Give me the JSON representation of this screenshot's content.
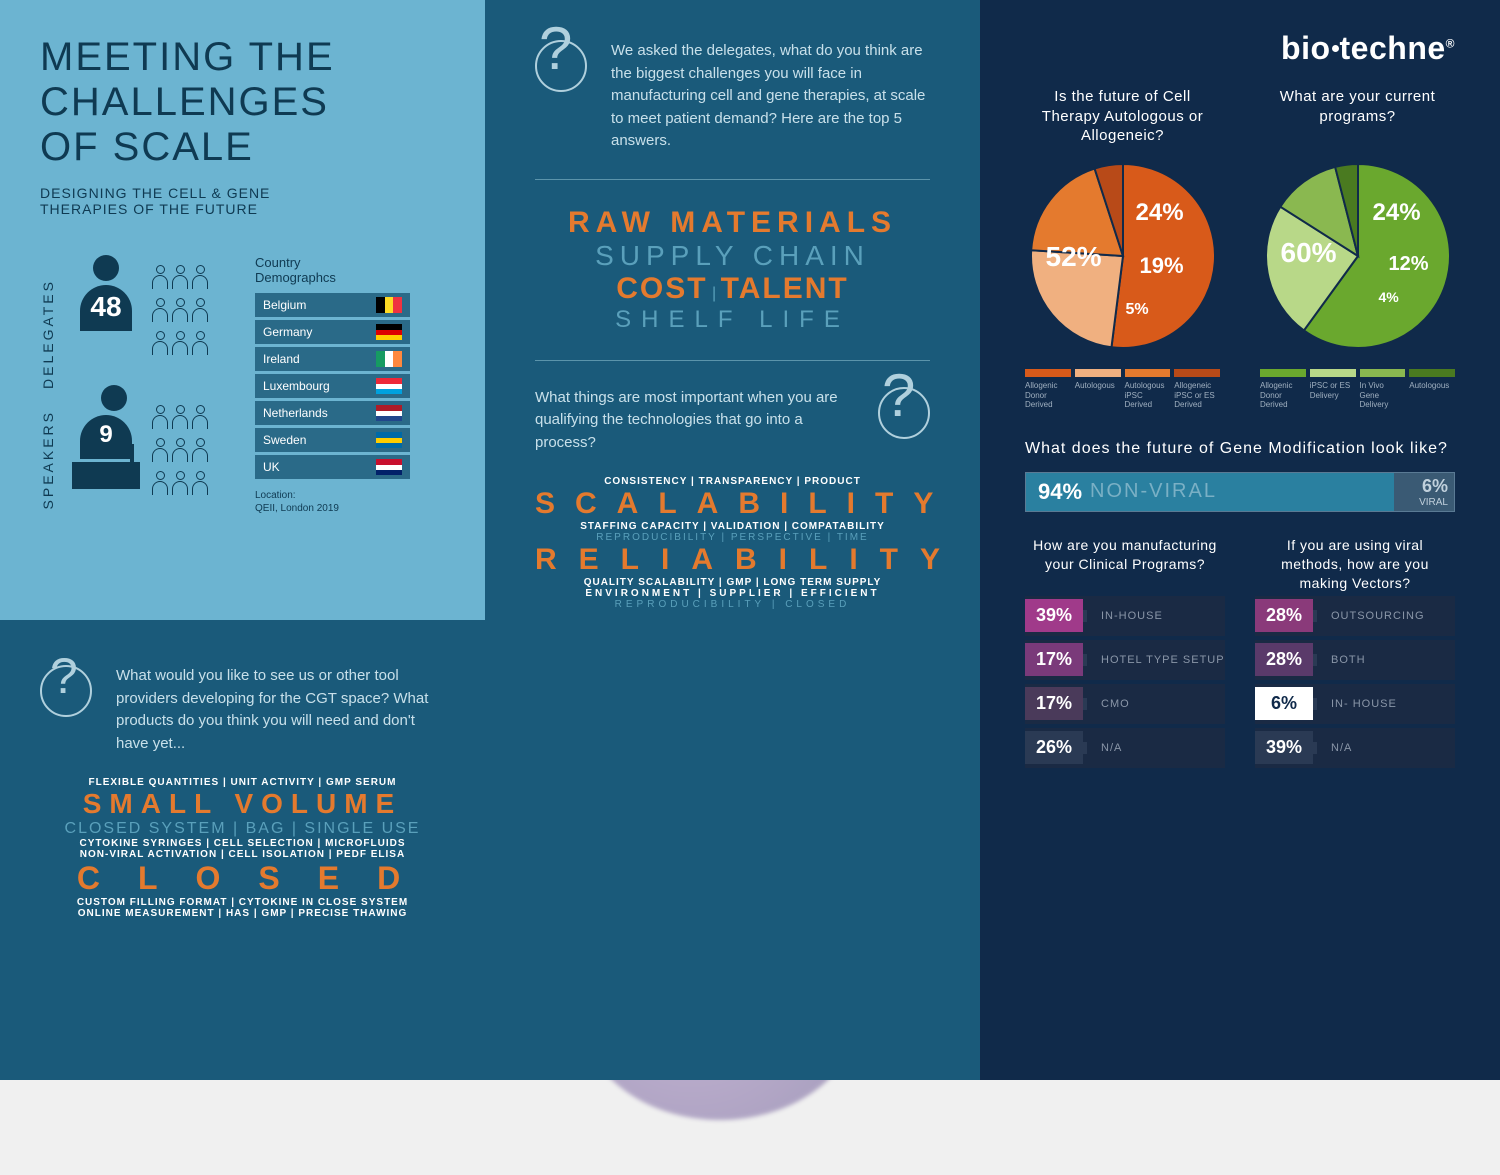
{
  "header": {
    "title_l1": "MEETING THE",
    "title_l2": "CHALLENGES",
    "title_l3": "OF SCALE",
    "subtitle": "DESIGNING THE CELL & GENE\nTHERAPIES OF THE FUTURE"
  },
  "stats": {
    "delegates_label": "DELEGATES",
    "delegates_count": "48",
    "speakers_label": "SPEAKERS",
    "speakers_count": "9"
  },
  "countries": {
    "title": "Country\nDemographcs",
    "rows": [
      {
        "name": "Belgium",
        "flag": [
          "#000000",
          "#fdda24",
          "#ef3340"
        ],
        "vertical": true
      },
      {
        "name": "Germany",
        "flag": [
          "#000000",
          "#dd0000",
          "#ffce00"
        ]
      },
      {
        "name": "Ireland",
        "flag": [
          "#169b62",
          "#ffffff",
          "#ff883e"
        ],
        "vertical": true
      },
      {
        "name": "Luxembourg",
        "flag": [
          "#ed2939",
          "#ffffff",
          "#00a1de"
        ]
      },
      {
        "name": "Netherlands",
        "flag": [
          "#ae1c28",
          "#ffffff",
          "#21468b"
        ]
      },
      {
        "name": "Sweden",
        "flag": [
          "#006aa7",
          "#fecc00",
          "#006aa7"
        ]
      },
      {
        "name": "UK",
        "flag": [
          "#c8102e",
          "#ffffff",
          "#012169"
        ]
      }
    ],
    "location": "Location:\nQEII, London 2019"
  },
  "panel_left_bot": {
    "question": "What would you like to see us or other tool providers developing for the CGT space? What products do  you think you will need and don't have yet...",
    "cloud": {
      "l1": "FLEXIBLE QUANTITIES | UNIT ACTIVITY | GMP SERUM",
      "l2": "SMALL VOLUME",
      "l3": "CLOSED SYSTEM | BAG | SINGLE USE",
      "l4": "CYTOKINE SYRINGES | CELL SELECTION | MICROFLUIDS",
      "l5": "NON-VIRAL ACTIVATION | CELL ISOLATION | PEDF ELISA",
      "l6": "CLOSED",
      "l7": "CUSTOM FILLING FORMAT | CYTOKINE IN CLOSE SYSTEM",
      "l8": "ONLINE MEASUREMENT | HAS | GMP | PRECISE THAWING"
    }
  },
  "panel_mid": {
    "q1": "We asked the delegates, what do you think are the biggest challenges you will face in manufacturing cell and gene therapies, at scale to meet patient demand? Here are the top 5 answers.",
    "cloud1": {
      "l1": "RAW MATERIALS",
      "l2": "SUPPLY CHAIN",
      "l3a": "COST",
      "l3b": "TALENT",
      "l4": "SHELF LIFE"
    },
    "q2": "What things are most important when you are qualifying the technologies that go into a process?",
    "cloud2": {
      "l1": "CONSISTENCY | TRANSPARENCY | PRODUCT",
      "l2": "SCALABILITY",
      "l3": "STAFFING CAPACITY | VALIDATION | COMPATABILITY",
      "l4": "REPRODUCIBILITY | PERSPECTIVE | TIME",
      "l5": "RELIABILITY",
      "l6": "QUALITY SCALABILITY | GMP | LONG TERM SUPPLY",
      "l7": "ENVIRONMENT | SUPPLIER | EFFICIENT",
      "l8": "REPRODUCIBILITY | CLOSED"
    }
  },
  "panel_right": {
    "logo": "biotechne",
    "pie1": {
      "question": "Is the future of Cell Therapy Autologous or Allogeneic?",
      "slices": [
        {
          "label": "52%",
          "value": 52,
          "color": "#d85a1a"
        },
        {
          "label": "24%",
          "value": 24,
          "color": "#f0b080"
        },
        {
          "label": "19%",
          "value": 19,
          "color": "#e47a2e"
        },
        {
          "label": "5%",
          "value": 5,
          "color": "#b84a18"
        }
      ],
      "legend": [
        "Allogenic Donor Derived",
        "Autologous",
        "Autologous iPSC Derived",
        "Allogeneic iPSC or ES Derived"
      ]
    },
    "pie2": {
      "question": "What are your current programs?",
      "slices": [
        {
          "label": "60%",
          "value": 60,
          "color": "#6aa82e"
        },
        {
          "label": "24%",
          "value": 24,
          "color": "#b8d888"
        },
        {
          "label": "12%",
          "value": 12,
          "color": "#8ab850"
        },
        {
          "label": "4%",
          "value": 4,
          "color": "#4a7a20"
        }
      ],
      "legend": [
        "Allogenic Donor Derived",
        "iPSC or ES Delivery",
        "In Vivo Gene Delivery",
        "Autologous"
      ]
    },
    "gene_mod": {
      "question": "What does the future of Gene Modification look like?",
      "main_pct": "94%",
      "main_label": "NON-VIRAL",
      "main_width": 86,
      "alt_pct": "6%",
      "alt_label": "VIRAL"
    },
    "table1": {
      "question": "How are you manufacturing your Clinical Programs?",
      "rows": [
        {
          "pct": "39%",
          "label": "IN-HOUSE",
          "color": "#a03a8a"
        },
        {
          "pct": "17%",
          "label": "HOTEL TYPE SETUP",
          "color": "#7a3a7a"
        },
        {
          "pct": "17%",
          "label": "CMO",
          "color": "#4a3a5a"
        },
        {
          "pct": "26%",
          "label": "N/A",
          "color": "#2a3a54"
        }
      ]
    },
    "table2": {
      "question": "If you are using viral methods, how are you making Vectors?",
      "rows": [
        {
          "pct": "28%",
          "label": "OUTSOURCING",
          "color": "#8a3a7a"
        },
        {
          "pct": "28%",
          "label": "BOTH",
          "color": "#5a3a6a"
        },
        {
          "pct": "6%",
          "label": "IN- HOUSE",
          "color": "#ffffff",
          "txt": "#102a4a"
        },
        {
          "pct": "39%",
          "label": "N/A",
          "color": "#2a3a54"
        }
      ]
    }
  }
}
